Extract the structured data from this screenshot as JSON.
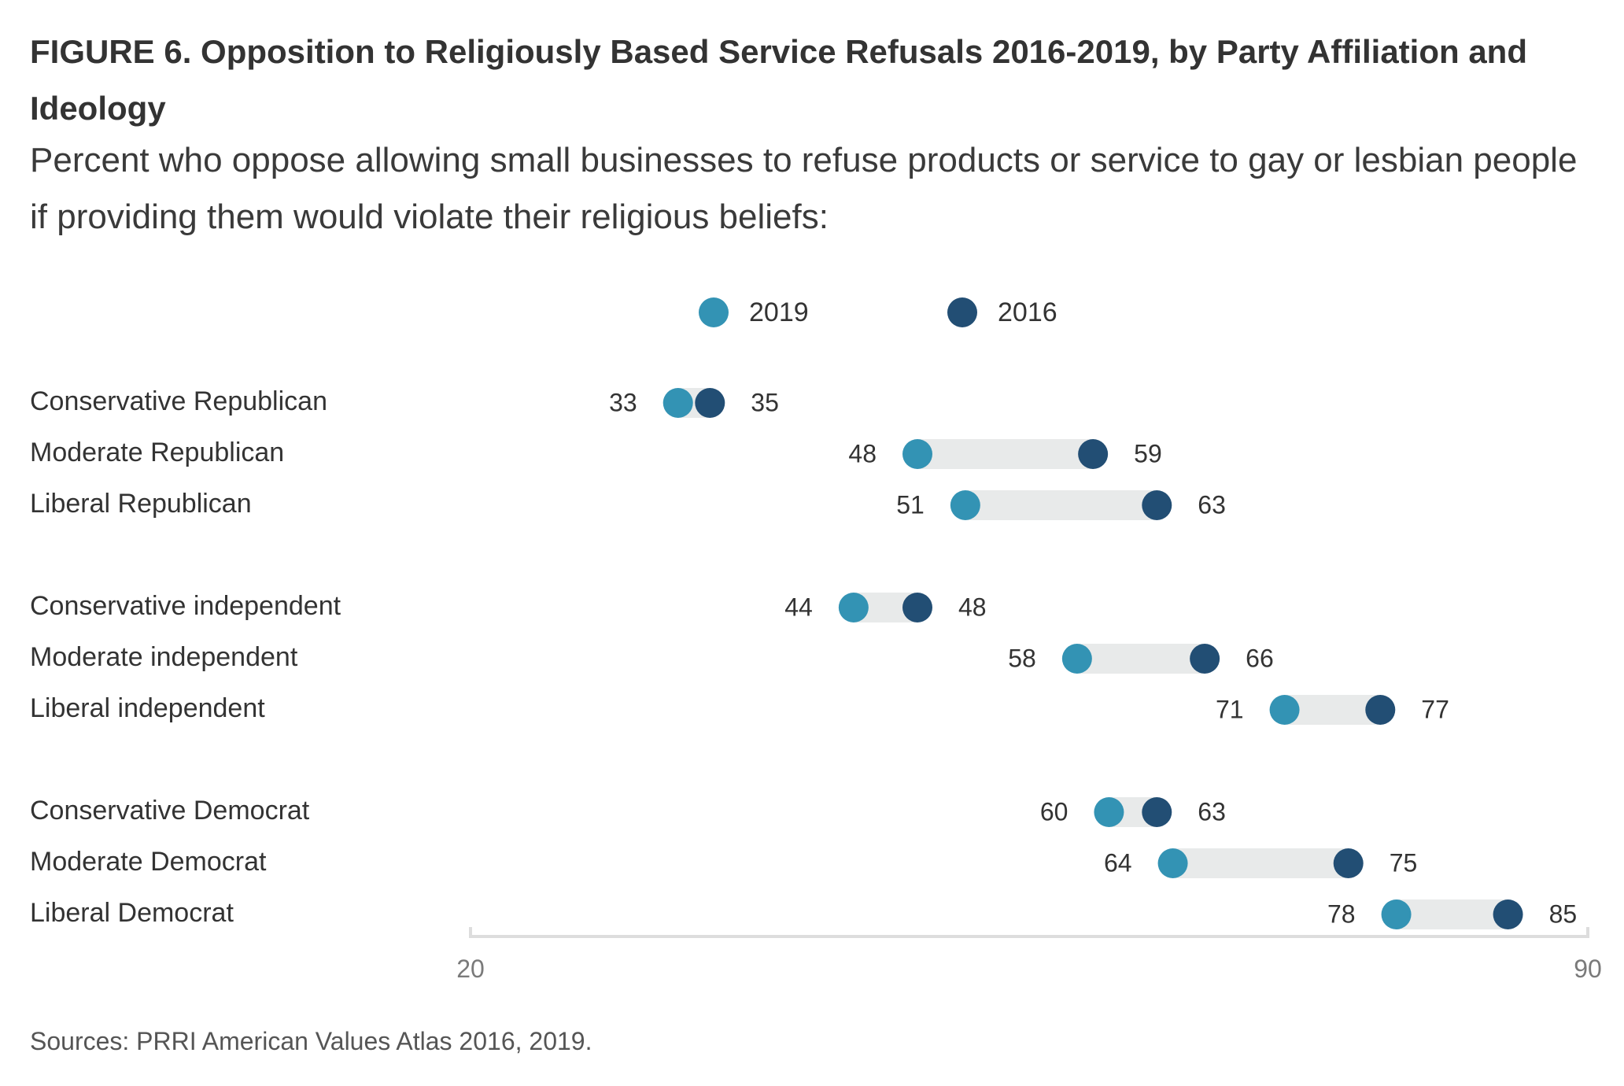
{
  "title": "FIGURE 6. Opposition to Religiously Based Service Refusals 2016-2019, by Party Affiliation and Ideology",
  "subtitle": "Percent who oppose allowing small businesses to refuse products or service to gay or lesbian people if providing them would violate their religious beliefs:",
  "source": "Sources: PRRI American Values Atlas 2016, 2019.",
  "legend": [
    {
      "name": "2019",
      "color": "#3393b4"
    },
    {
      "name": "2016",
      "color": "#224e74"
    }
  ],
  "chart_data": {
    "type": "dumbbell",
    "title": "FIGURE 6. Opposition to Religiously Based Service Refusals 2016-2019, by Party Affiliation and Ideology",
    "xlim": [
      20,
      90
    ],
    "x_ticks": [
      "20",
      "90"
    ],
    "grid": false,
    "legend_position": "top-center",
    "colors": {
      "2019": "#3393b4",
      "2016": "#224e74",
      "connector": "#e8eaea",
      "axis": "#dddddd"
    },
    "groups": [
      {
        "rows": [
          {
            "label": "Conservative Republican",
            "v2019": 33,
            "v2016": 35
          },
          {
            "label": "Moderate Republican",
            "v2019": 48,
            "v2016": 59
          },
          {
            "label": "Liberal Republican",
            "v2019": 51,
            "v2016": 63
          }
        ]
      },
      {
        "rows": [
          {
            "label": "Conservative independent",
            "v2019": 44,
            "v2016": 48
          },
          {
            "label": "Moderate independent",
            "v2019": 58,
            "v2016": 66
          },
          {
            "label": "Liberal independent",
            "v2019": 71,
            "v2016": 77
          }
        ]
      },
      {
        "rows": [
          {
            "label": "Conservative Democrat",
            "v2019": 60,
            "v2016": 63
          },
          {
            "label": "Moderate Democrat",
            "v2019": 64,
            "v2016": 75
          },
          {
            "label": "Liberal Democrat",
            "v2019": 78,
            "v2016": 85
          }
        ]
      }
    ]
  }
}
